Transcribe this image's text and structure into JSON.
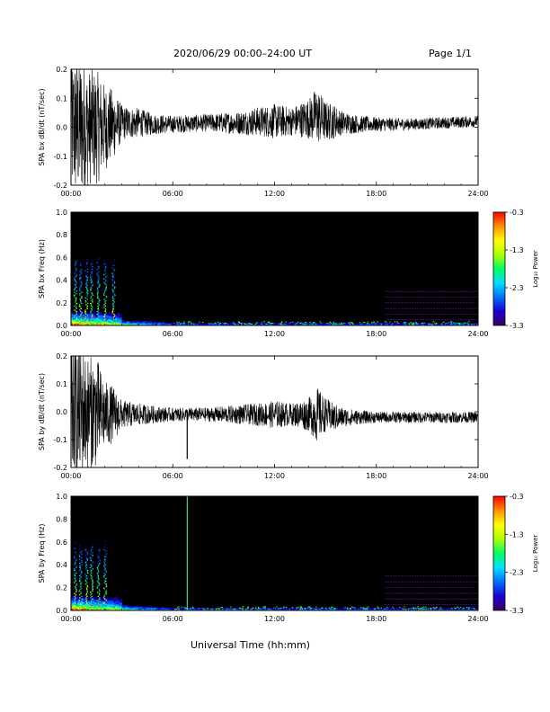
{
  "header": {
    "title": "2020/06/29  00:00–24:00 UT",
    "page": "Page 1/1"
  },
  "footer": {
    "xlabel": "Universal Time (hh:mm)"
  },
  "colors": {
    "trace": "#000000",
    "spectrogram_background": "#000000",
    "colorbar": [
      "#3a0060",
      "#1a00d0",
      "#0070ff",
      "#00e0ff",
      "#00ff60",
      "#b0ff00",
      "#ffff00",
      "#ff9000",
      "#ff0000"
    ]
  },
  "chart_data": [
    {
      "type": "line",
      "ylabel": "SPA bx dB/dt (nT/sec)",
      "ylim": [
        -0.2,
        0.2
      ],
      "yticks": [
        "0.2",
        "0.1",
        "0.0",
        "-0.1",
        "-0.2"
      ],
      "xticks": [
        "00:00",
        "06:00",
        "12:00",
        "18:00",
        "24:00"
      ],
      "xlim_hours": [
        0,
        24
      ],
      "series": [
        {
          "x_hours": [
            0,
            0.5,
            1,
            1.5,
            2,
            2.5,
            3,
            4,
            5,
            6,
            8,
            10,
            11,
            12,
            13,
            14,
            14.5,
            15,
            15.5,
            16,
            17,
            18,
            20,
            22,
            24
          ],
          "baseline": [
            0,
            0,
            0,
            0,
            0,
            0.01,
            0.015,
            0.015,
            0.01,
            0.01,
            0.015,
            0.015,
            0.02,
            0.02,
            0.02,
            0.03,
            0.04,
            0.02,
            0.02,
            0.015,
            0.01,
            0.01,
            0.01,
            0.015,
            0.02
          ],
          "amplitude": [
            0.25,
            0.25,
            0.2,
            0.2,
            0.15,
            0.12,
            0.06,
            0.05,
            0.035,
            0.03,
            0.03,
            0.04,
            0.05,
            0.06,
            0.05,
            0.07,
            0.1,
            0.07,
            0.06,
            0.04,
            0.03,
            0.025,
            0.02,
            0.02,
            0.02
          ]
        }
      ]
    },
    {
      "type": "heatmap",
      "ylabel": "SPA bx Freq (Hz)",
      "ylim": [
        0,
        1.0
      ],
      "yticks": [
        "1.0",
        "0.8",
        "0.6",
        "0.4",
        "0.2",
        "0.0"
      ],
      "xticks": [
        "00:00",
        "06:00",
        "12:00",
        "18:00",
        "24:00"
      ],
      "xlim_hours": [
        0,
        24
      ],
      "colorbar_label": "Log₁₀ Power",
      "colorbar_ticks": [
        "-0.3",
        "-1.3",
        "-2.3",
        "-3.3"
      ],
      "colorbar_range": [
        -3.3,
        -0.3
      ],
      "bursts_hours": [
        0.15,
        0.45,
        0.8,
        1.1,
        1.5,
        1.9,
        2.4
      ],
      "lines_after_hour": 18.5,
      "line_freqs_hz": [
        0.3,
        0.25,
        0.2,
        0.15,
        0.1,
        0.05
      ]
    },
    {
      "type": "line",
      "ylabel": "SPA by dB/dt (nT/sec)",
      "ylim": [
        -0.2,
        0.2
      ],
      "yticks": [
        "0.2",
        "0.1",
        "0.0",
        "-0.1",
        "-0.2"
      ],
      "xticks": [
        "00:00",
        "06:00",
        "12:00",
        "18:00",
        "24:00"
      ],
      "xlim_hours": [
        0,
        24
      ],
      "series": [
        {
          "x_hours": [
            0,
            0.5,
            1,
            1.5,
            2,
            2.5,
            3,
            4,
            5,
            6,
            8,
            10,
            11,
            12,
            13,
            14,
            14.5,
            15,
            15.5,
            16,
            17,
            18,
            20,
            22,
            24
          ],
          "baseline": [
            0,
            0,
            0,
            0,
            -0.01,
            -0.01,
            -0.01,
            -0.01,
            -0.01,
            -0.01,
            -0.01,
            -0.01,
            -0.01,
            -0.01,
            -0.01,
            -0.01,
            -0.01,
            -0.01,
            -0.02,
            -0.02,
            -0.02,
            -0.02,
            -0.02,
            -0.02,
            -0.02
          ],
          "amplitude": [
            0.25,
            0.25,
            0.2,
            0.2,
            0.12,
            0.1,
            0.05,
            0.04,
            0.03,
            0.025,
            0.025,
            0.035,
            0.04,
            0.05,
            0.04,
            0.06,
            0.1,
            0.06,
            0.05,
            0.035,
            0.025,
            0.02,
            0.02,
            0.02,
            0.02
          ],
          "spike_hour": 6.85,
          "spike_min": -0.17
        }
      ]
    },
    {
      "type": "heatmap",
      "ylabel": "SPA by Freq (Hz)",
      "ylim": [
        0,
        1.0
      ],
      "yticks": [
        "1.0",
        "0.8",
        "0.6",
        "0.4",
        "0.2",
        "0.0"
      ],
      "xticks": [
        "00:00",
        "06:00",
        "12:00",
        "18:00",
        "24:00"
      ],
      "xlim_hours": [
        0,
        24
      ],
      "colorbar_label": "Log₁₀ Power",
      "colorbar_ticks": [
        "-0.3",
        "-1.3",
        "-2.3",
        "-3.3"
      ],
      "colorbar_range": [
        -3.3,
        -0.3
      ],
      "bursts_hours": [
        0.15,
        0.45,
        0.8,
        1.1,
        1.5,
        1.9
      ],
      "lines_after_hour": 18.5,
      "line_freqs_hz": [
        0.3,
        0.25,
        0.2,
        0.15,
        0.1,
        0.05
      ],
      "vertical_line_hour": 6.85
    }
  ]
}
